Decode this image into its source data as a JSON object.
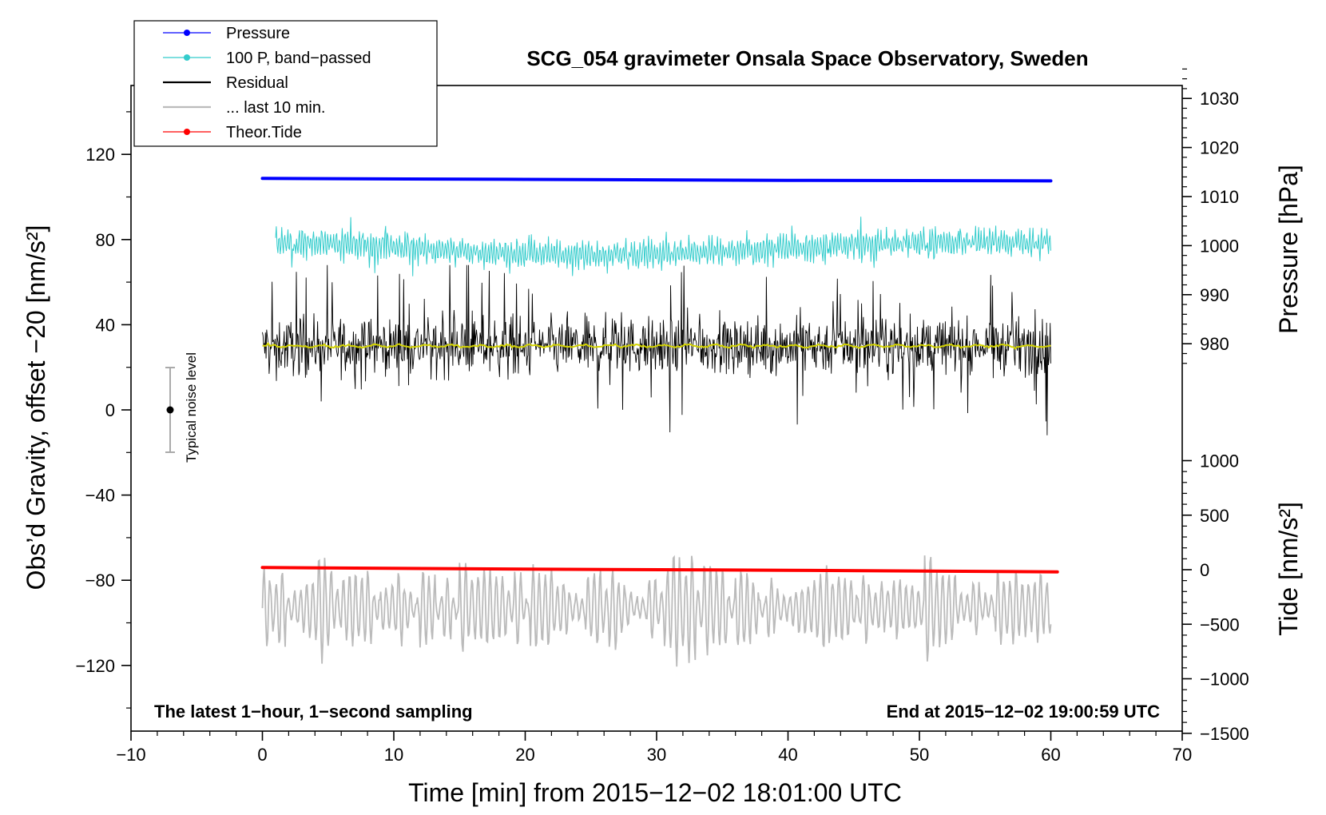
{
  "chart_data": {
    "type": "line",
    "title": "SCG_054 gravimeter Onsala Space Observatory, Sweden",
    "xlabel": "Time [min] from 2015−12−02 18:01:00 UTC",
    "ylabel_left": "Obs’d Gravity, offset −20 [nm/s²]",
    "ylabel_right_top": "Pressure [hPa]",
    "ylabel_right_bottom": "Tide [nm/s²]",
    "xlim": [
      -10,
      70
    ],
    "ylim_left": [
      -150,
      150
    ],
    "ylim_pressure": [
      955,
      1037
    ],
    "ylim_tide": [
      -1500,
      1000
    ],
    "x_ticks": [
      "−10",
      "0",
      "10",
      "20",
      "30",
      "40",
      "50",
      "60",
      "70"
    ],
    "x_tick_values": [
      -10,
      0,
      10,
      20,
      30,
      40,
      50,
      60,
      70
    ],
    "y_left_ticks": [
      "120",
      "80",
      "40",
      "0",
      "−40",
      "−80",
      "−120"
    ],
    "y_left_tick_values": [
      120,
      80,
      40,
      0,
      -40,
      -80,
      -120
    ],
    "pressure_ticks": [
      "1030",
      "1020",
      "1010",
      "1000",
      "990",
      "980"
    ],
    "pressure_tick_values": [
      1030,
      1020,
      1010,
      1000,
      990,
      980
    ],
    "tide_ticks": [
      "1000",
      "500",
      "0",
      "−500",
      "−1000",
      "−1500"
    ],
    "tide_tick_values": [
      1000,
      500,
      0,
      -500,
      -1000,
      -1500
    ],
    "legend": [
      {
        "label": "Pressure",
        "color": "#0000ff",
        "marker": true
      },
      {
        "label": "100 P, band−passed",
        "color": "#33cccc",
        "marker": true
      },
      {
        "label": "Residual",
        "color": "#000000",
        "marker": false
      },
      {
        "label": "... last 10 min.",
        "color": "#bbbbbb",
        "marker": false
      },
      {
        "label": "Theor.Tide",
        "color": "#ff0000",
        "marker": true
      }
    ],
    "series": [
      {
        "name": "Pressure",
        "axis": "pressure",
        "color": "#0000ff",
        "x": [
          0,
          20,
          40,
          60
        ],
        "values": [
          1013.7,
          1013.5,
          1013.3,
          1013.2
        ]
      },
      {
        "name": "100 P, band-passed",
        "axis": "left",
        "color": "#33cccc",
        "x_range": [
          1,
          60
        ],
        "mean": 76,
        "amplitude": 7
      },
      {
        "name": "Residual",
        "axis": "left",
        "color": "#000000",
        "x_range": [
          0,
          60
        ],
        "mean": 30,
        "amplitude": 25
      },
      {
        "name": "Residual smoothed",
        "axis": "left",
        "color": "#d4d400",
        "x_range": [
          0,
          60
        ],
        "mean": 30,
        "amplitude": 0.8
      },
      {
        "name": "... last 10 min.",
        "axis": "left",
        "color": "#bbbbbb",
        "x_range": [
          0,
          60
        ],
        "mean": -93,
        "amplitude": 12
      },
      {
        "name": "Theor.Tide",
        "axis": "tide",
        "color": "#ff0000",
        "x": [
          0,
          20,
          40,
          60.5
        ],
        "values": [
          20,
          5,
          -5,
          -20
        ]
      }
    ],
    "noise_bar": {
      "x": -7,
      "center": 0,
      "low": -20,
      "high": 20,
      "label": "Typical noise level"
    },
    "annotation_left": "The latest 1−hour, 1−second sampling",
    "annotation_right": "End at 2015−12−02 19:00:59 UTC"
  }
}
